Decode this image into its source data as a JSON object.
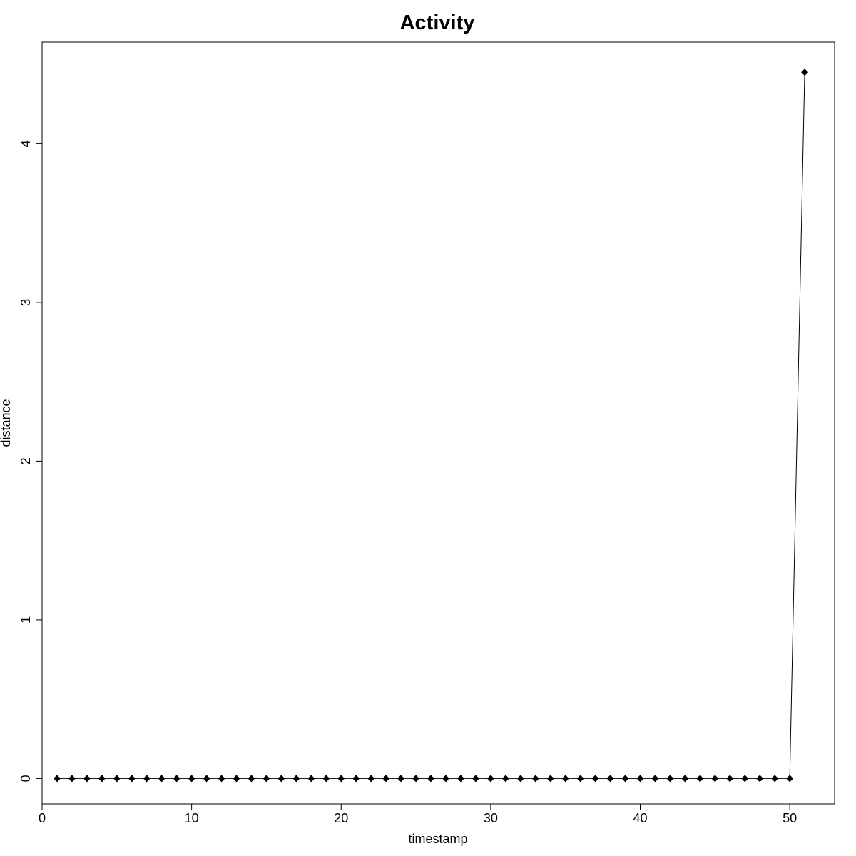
{
  "chart_data": {
    "type": "line",
    "title": "Activity",
    "xlabel": "timestamp",
    "ylabel": "distance",
    "xlim": [
      0,
      53
    ],
    "ylim": [
      -0.16,
      4.64
    ],
    "x_ticks": [
      0,
      10,
      20,
      30,
      40,
      50
    ],
    "y_ticks": [
      0,
      1,
      2,
      3,
      4
    ],
    "grid": false,
    "legend": "none",
    "marker": "diamond",
    "line_color": "#000000",
    "series": [
      {
        "x": [
          1,
          2,
          3,
          4,
          5,
          6,
          7,
          8,
          9,
          10,
          11,
          12,
          13,
          14,
          15,
          16,
          17,
          18,
          19,
          20,
          21,
          22,
          23,
          24,
          25,
          26,
          27,
          28,
          29,
          30,
          31,
          32,
          33,
          34,
          35,
          36,
          37,
          38,
          39,
          40,
          41,
          42,
          43,
          44,
          45,
          46,
          47,
          48,
          49,
          50,
          51
        ],
        "y": [
          0,
          0,
          0,
          0,
          0,
          0,
          0,
          0,
          0,
          0,
          0,
          0,
          0,
          0,
          0,
          0,
          0,
          0,
          0,
          0,
          0,
          0,
          0,
          0,
          0,
          0,
          0,
          0,
          0,
          0,
          0,
          0,
          0,
          0,
          0,
          0,
          0,
          0,
          0,
          0,
          0,
          0,
          0,
          0,
          0,
          0,
          0,
          0,
          0,
          0,
          4.45
        ]
      }
    ]
  }
}
